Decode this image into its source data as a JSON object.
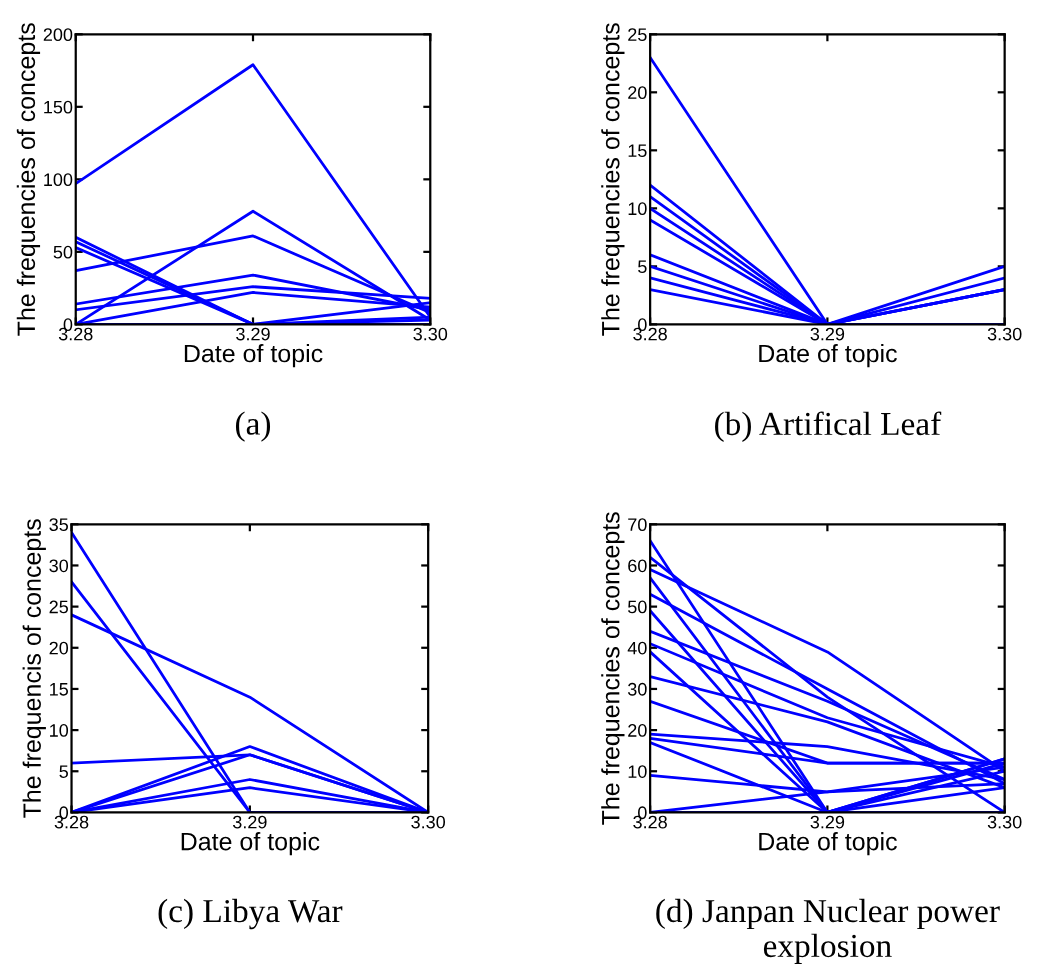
{
  "chart_data": [
    {
      "type": "line",
      "title": "(a)",
      "xlabel": "Date of topic",
      "ylabel": "The frequencies of concepts",
      "categories": [
        "3.28",
        "3.29",
        "3.30"
      ],
      "ylim": [
        0,
        200
      ],
      "yticks": [
        0,
        50,
        100,
        150,
        200
      ],
      "grid": false,
      "legend": false,
      "series": [
        {
          "color": "#0000ff",
          "values": [
            97,
            179,
            5
          ]
        },
        {
          "color": "#0000ff",
          "values": [
            0,
            78,
            3
          ]
        },
        {
          "color": "#0000ff",
          "values": [
            37,
            61,
            8
          ]
        },
        {
          "color": "#0000ff",
          "values": [
            60,
            0,
            5
          ]
        },
        {
          "color": "#0000ff",
          "values": [
            57,
            0,
            3
          ]
        },
        {
          "color": "#0000ff",
          "values": [
            53,
            0,
            0
          ]
        },
        {
          "color": "#0000ff",
          "values": [
            14,
            34,
            10
          ]
        },
        {
          "color": "#0000ff",
          "values": [
            10,
            26,
            18
          ]
        },
        {
          "color": "#0000ff",
          "values": [
            0,
            22,
            12
          ]
        },
        {
          "color": "#0000ff",
          "values": [
            0,
            0,
            15
          ]
        }
      ]
    },
    {
      "type": "line",
      "title": "(b) Artifical Leaf",
      "xlabel": "Date of topic",
      "ylabel": "The frequencies of concepts",
      "categories": [
        "3.28",
        "3.29",
        "3.30"
      ],
      "ylim": [
        0,
        25
      ],
      "yticks": [
        0,
        5,
        10,
        15,
        20,
        25
      ],
      "grid": false,
      "legend": false,
      "series": [
        {
          "color": "#0000ff",
          "values": [
            23,
            0,
            0
          ]
        },
        {
          "color": "#0000ff",
          "values": [
            12,
            0,
            5
          ]
        },
        {
          "color": "#0000ff",
          "values": [
            11,
            0,
            4
          ]
        },
        {
          "color": "#0000ff",
          "values": [
            10,
            0,
            3
          ]
        },
        {
          "color": "#0000ff",
          "values": [
            9,
            0,
            3
          ]
        },
        {
          "color": "#0000ff",
          "values": [
            6,
            0,
            0
          ]
        },
        {
          "color": "#0000ff",
          "values": [
            5,
            0,
            0
          ]
        },
        {
          "color": "#0000ff",
          "values": [
            4,
            0,
            0
          ]
        },
        {
          "color": "#0000ff",
          "values": [
            3,
            0,
            3
          ]
        }
      ]
    },
    {
      "type": "line",
      "title": "(c) Libya War",
      "xlabel": "Date of topic",
      "ylabel": "The frequencis of concepts",
      "categories": [
        "3.28",
        "3.29",
        "3.30"
      ],
      "ylim": [
        0,
        35
      ],
      "yticks": [
        0,
        5,
        10,
        15,
        20,
        25,
        30,
        35
      ],
      "grid": false,
      "legend": false,
      "series": [
        {
          "color": "#0000ff",
          "values": [
            34,
            0,
            0
          ]
        },
        {
          "color": "#0000ff",
          "values": [
            28,
            0,
            0
          ]
        },
        {
          "color": "#0000ff",
          "values": [
            24,
            14,
            0
          ]
        },
        {
          "color": "#0000ff",
          "values": [
            6,
            7,
            0
          ]
        },
        {
          "color": "#0000ff",
          "values": [
            0,
            8,
            0
          ]
        },
        {
          "color": "#0000ff",
          "values": [
            0,
            7,
            0
          ]
        },
        {
          "color": "#0000ff",
          "values": [
            0,
            4,
            0
          ]
        },
        {
          "color": "#0000ff",
          "values": [
            0,
            3,
            0
          ]
        }
      ]
    },
    {
      "type": "line",
      "title": "(d) Janpan Nuclear power explosion",
      "xlabel": "Date of topic",
      "ylabel": "The frequencies of concepts",
      "categories": [
        "3.28",
        "3.29",
        "3.30"
      ],
      "ylim": [
        0,
        70
      ],
      "yticks": [
        0,
        10,
        20,
        30,
        40,
        50,
        60,
        70
      ],
      "grid": false,
      "legend": false,
      "series": [
        {
          "color": "#0000ff",
          "values": [
            66,
            0,
            0
          ]
        },
        {
          "color": "#0000ff",
          "values": [
            62,
            28,
            0
          ]
        },
        {
          "color": "#0000ff",
          "values": [
            59,
            39,
            10
          ]
        },
        {
          "color": "#0000ff",
          "values": [
            57,
            0,
            0
          ]
        },
        {
          "color": "#0000ff",
          "values": [
            53,
            30,
            7
          ]
        },
        {
          "color": "#0000ff",
          "values": [
            49,
            0,
            12
          ]
        },
        {
          "color": "#0000ff",
          "values": [
            44,
            27,
            8
          ]
        },
        {
          "color": "#0000ff",
          "values": [
            41,
            23,
            11
          ]
        },
        {
          "color": "#0000ff",
          "values": [
            39,
            0,
            13
          ]
        },
        {
          "color": "#0000ff",
          "values": [
            33,
            22,
            6
          ]
        },
        {
          "color": "#0000ff",
          "values": [
            27,
            12,
            12
          ]
        },
        {
          "color": "#0000ff",
          "values": [
            19,
            16,
            8
          ]
        },
        {
          "color": "#0000ff",
          "values": [
            18,
            12,
            12
          ]
        },
        {
          "color": "#0000ff",
          "values": [
            17,
            0,
            10
          ]
        },
        {
          "color": "#0000ff",
          "values": [
            9,
            5,
            7
          ]
        },
        {
          "color": "#0000ff",
          "values": [
            0,
            5,
            11
          ]
        },
        {
          "color": "#0000ff",
          "values": [
            0,
            0,
            13
          ]
        },
        {
          "color": "#0000ff",
          "values": [
            0,
            0,
            6
          ]
        }
      ]
    }
  ]
}
